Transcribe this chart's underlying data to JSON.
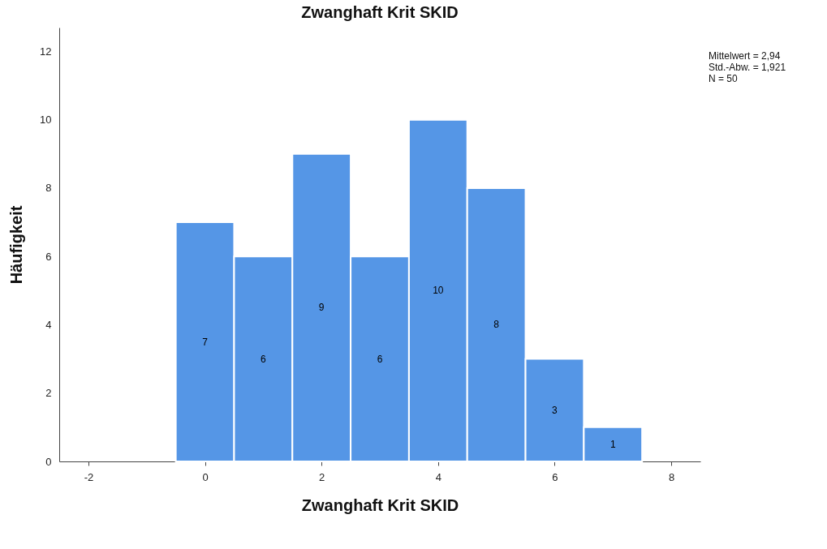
{
  "chart_data": {
    "type": "histogram",
    "title": "Zwanghaft Krit SKID",
    "xlabel": "Zwanghaft Krit SKID",
    "ylabel": "Häufigkeit",
    "bins": [
      -0.5,
      0.5,
      1.5,
      2.5,
      3.5,
      4.5,
      5.5,
      6.5,
      7.5
    ],
    "values": [
      7,
      6,
      9,
      6,
      10,
      8,
      3,
      1
    ],
    "color": "#5596e6",
    "xlim": [
      -2.5,
      8.5
    ],
    "xticks": [
      -2,
      0,
      2,
      4,
      6,
      8
    ],
    "ylim": [
      0,
      12.7
    ],
    "yticks": [
      0,
      2,
      4,
      6,
      8,
      10,
      12
    ],
    "grid": false,
    "data_labels": true,
    "annotations": [
      "Mittelwert = 2,94",
      "Std.-Abw. = 1,921",
      "N = 50"
    ]
  }
}
